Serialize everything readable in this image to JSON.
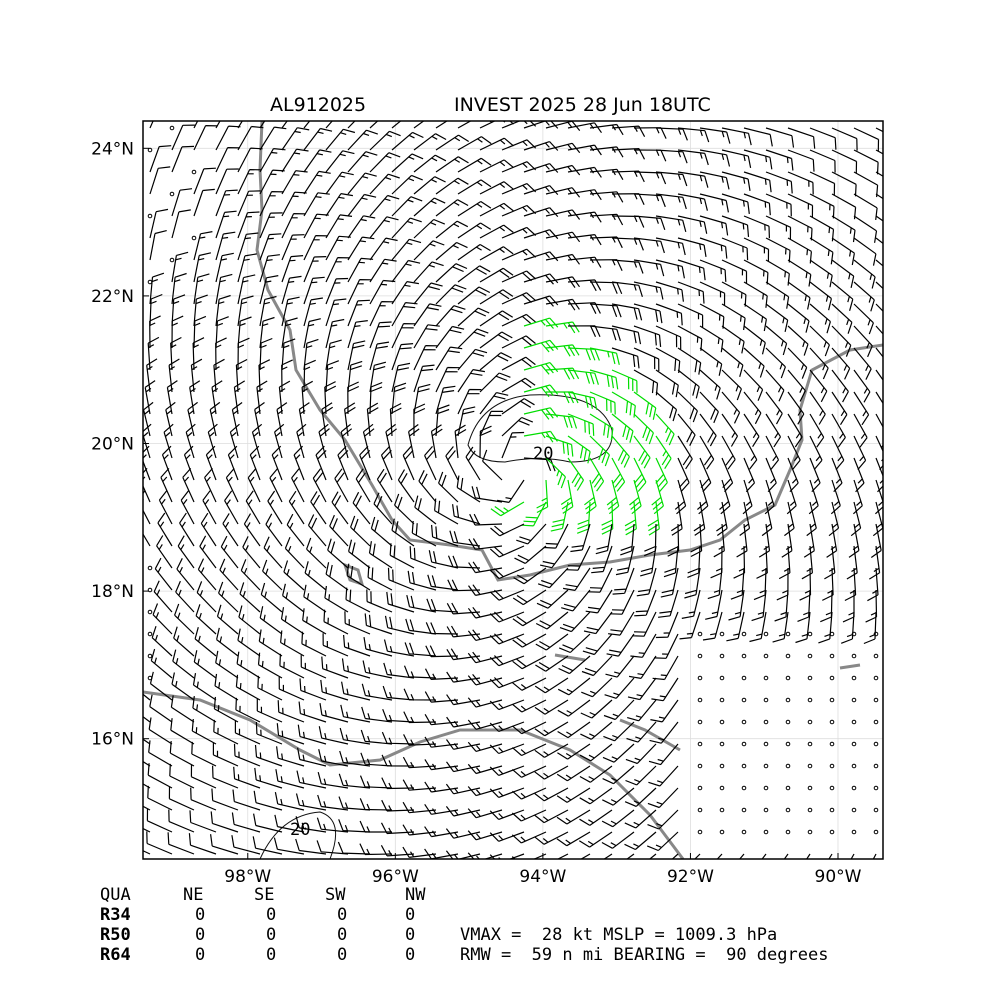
{
  "map": {
    "storm_id": "AL912025",
    "title": "INVEST 2025 28 Jun 18UTC",
    "lon_range": [
      -99.42,
      -89.39
    ],
    "lat_range": [
      14.37,
      24.37
    ],
    "lon_ticks": [
      {
        "value": -98,
        "label": "98°W"
      },
      {
        "value": -96,
        "label": "96°W"
      },
      {
        "value": -94,
        "label": "94°W"
      },
      {
        "value": -92,
        "label": "92°W"
      },
      {
        "value": -90,
        "label": "90°W"
      }
    ],
    "lat_ticks": [
      {
        "value": 24,
        "label": "24°N"
      },
      {
        "value": 22,
        "label": "22°N"
      },
      {
        "value": 20,
        "label": "20°N"
      },
      {
        "value": 18,
        "label": "18°N"
      },
      {
        "value": 16,
        "label": "16°N"
      }
    ],
    "contour_labels": [
      "20",
      "20"
    ]
  },
  "radii_table": {
    "header": [
      "QUA",
      "NE",
      "SE",
      "SW",
      "NW"
    ],
    "rows": [
      [
        "R34",
        "0",
        "0",
        "0",
        "0"
      ],
      [
        "R50",
        "0",
        "0",
        "0",
        "0"
      ],
      [
        "R64",
        "0",
        "0",
        "0",
        "0"
      ]
    ]
  },
  "stats": [
    "VMAX =  28 kt MSLP = 1009.3 hPa",
    "RMW =  59 n mi BEARING =  90 degrees"
  ]
}
